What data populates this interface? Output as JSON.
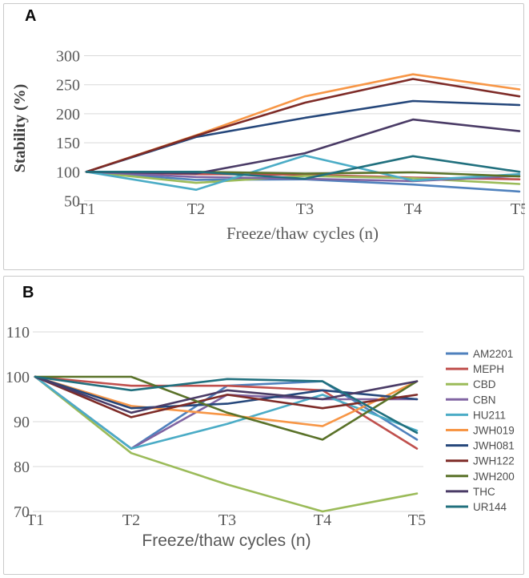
{
  "figure": {
    "description": "Two-panel line figure of analyte stability across freeze/thaw cycles"
  },
  "panels": [
    {
      "label": "A"
    },
    {
      "label": "B"
    }
  ],
  "colors": {
    "gridline": "#d9d9d9",
    "tick_text": "#595959",
    "axis_title": "#595959",
    "y_axis_title": "#3f3f3f",
    "legend_text": "#4d4d4d",
    "panel_border": "#c9c9c9"
  },
  "chart_data": [
    {
      "id": "A",
      "type": "line",
      "title": "",
      "xlabel": "Freeze/thaw cycles (n)",
      "ylabel": "Stability (%)",
      "categories": [
        "T1",
        "T2",
        "T3",
        "T4",
        "T5"
      ],
      "yticks": [
        50,
        100,
        150,
        200,
        250,
        300
      ],
      "ylim": [
        50,
        300
      ],
      "grid": true,
      "legend": false,
      "series": [
        {
          "name": "AM2201",
          "color": "#4F81BD",
          "values": [
            100,
            86,
            87,
            78,
            66
          ]
        },
        {
          "name": "MEPH",
          "color": "#C0504D",
          "values": [
            100,
            96,
            95,
            90,
            87
          ]
        },
        {
          "name": "CBD",
          "color": "#9BBB59",
          "values": [
            100,
            81,
            93,
            89,
            79
          ]
        },
        {
          "name": "CBN",
          "color": "#8064A2",
          "values": [
            100,
            91,
            88,
            84,
            93
          ]
        },
        {
          "name": "HU211",
          "color": "#4BACC6",
          "values": [
            100,
            69,
            128,
            85,
            96
          ]
        },
        {
          "name": "JWH019",
          "color": "#F79646",
          "values": [
            100,
            163,
            230,
            268,
            242
          ]
        },
        {
          "name": "JWH081",
          "color": "#25477B",
          "values": [
            100,
            160,
            193,
            222,
            215
          ]
        },
        {
          "name": "JWH122",
          "color": "#7E2B27",
          "values": [
            100,
            162,
            219,
            260,
            230
          ]
        },
        {
          "name": "JWH200",
          "color": "#5A7229",
          "values": [
            100,
            100,
            97,
            99,
            92
          ]
        },
        {
          "name": "THC",
          "color": "#4A3B66",
          "values": [
            100,
            97,
            132,
            190,
            170
          ]
        },
        {
          "name": "UR144",
          "color": "#21707E",
          "values": [
            100,
            100,
            88,
            127,
            100
          ]
        }
      ]
    },
    {
      "id": "B",
      "type": "line",
      "title": "",
      "xlabel": "Freeze/thaw cycles (n)",
      "ylabel": "",
      "categories": [
        "T1",
        "T2",
        "T3",
        "T4",
        "T5"
      ],
      "yticks": [
        70,
        80,
        90,
        100,
        110
      ],
      "ylim": [
        70,
        110
      ],
      "grid": true,
      "legend": true,
      "legend_position": "right",
      "legend_labels": [
        "AM2201",
        "MEPH",
        "CBD",
        "CBN",
        "HU211",
        "JWH019",
        "JWH081",
        "JWH122",
        "JWH200",
        "THC",
        "UR144"
      ],
      "series": [
        {
          "name": "AM2201",
          "color": "#4F81BD",
          "values": [
            100,
            84,
            98,
            99,
            86
          ]
        },
        {
          "name": "MEPH",
          "color": "#C0504D",
          "values": [
            100,
            98,
            98,
            97,
            84
          ]
        },
        {
          "name": "CBD",
          "color": "#9BBB59",
          "values": [
            100,
            83,
            76,
            70,
            74
          ]
        },
        {
          "name": "CBN",
          "color": "#8064A2",
          "values": [
            100,
            84,
            96,
            95,
            95
          ]
        },
        {
          "name": "HU211",
          "color": "#4BACC6",
          "values": [
            100,
            84,
            89.5,
            96,
            88
          ]
        },
        {
          "name": "JWH019",
          "color": "#F79646",
          "values": [
            100,
            93.5,
            91.5,
            89,
            99
          ]
        },
        {
          "name": "JWH081",
          "color": "#25477B",
          "values": [
            100,
            93,
            94,
            97,
            95
          ]
        },
        {
          "name": "JWH122",
          "color": "#7E2B27",
          "values": [
            100,
            91,
            96,
            93,
            96
          ]
        },
        {
          "name": "JWH200",
          "color": "#5A7229",
          "values": [
            100,
            100,
            92,
            86,
            99
          ]
        },
        {
          "name": "THC",
          "color": "#4A3B66",
          "values": [
            100,
            92,
            97,
            95,
            99
          ]
        },
        {
          "name": "UR144",
          "color": "#21707E",
          "values": [
            100,
            97,
            99.5,
            99,
            87.5
          ]
        }
      ]
    }
  ]
}
